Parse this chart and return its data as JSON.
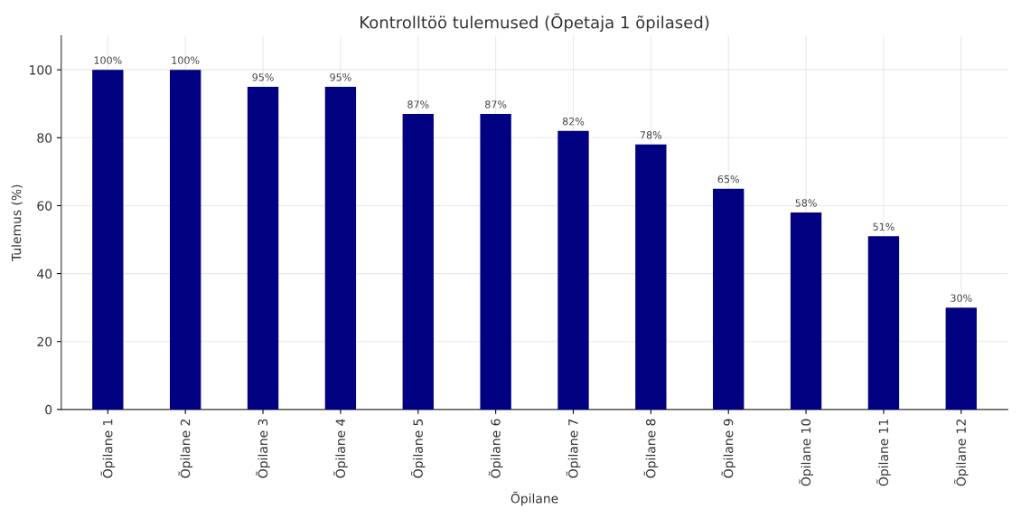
{
  "chart_data": {
    "type": "bar",
    "title": "Kontrolltöö tulemused (Õpetaja 1 õpilased)",
    "xlabel": "Õpilane",
    "ylabel": "Tulemus (%)",
    "categories": [
      "Õpilane 1",
      "Õpilane 2",
      "Õpilane 3",
      "Õpilane 4",
      "Õpilane 5",
      "Õpilane 6",
      "Õpilane 7",
      "Õpilane 8",
      "Õpilane 9",
      "Õpilane 10",
      "Õpilane 11",
      "Õpilane 12"
    ],
    "values": [
      100,
      100,
      95,
      95,
      87,
      87,
      82,
      78,
      65,
      58,
      51,
      30
    ],
    "value_labels": [
      "100%",
      "100%",
      "95%",
      "95%",
      "87%",
      "87%",
      "82%",
      "78%",
      "65%",
      "58%",
      "51%",
      "30%"
    ],
    "color": "#000080",
    "ylim": [
      0,
      110
    ],
    "yticks": [
      0,
      20,
      40,
      60,
      80,
      100
    ],
    "grid": true
  }
}
